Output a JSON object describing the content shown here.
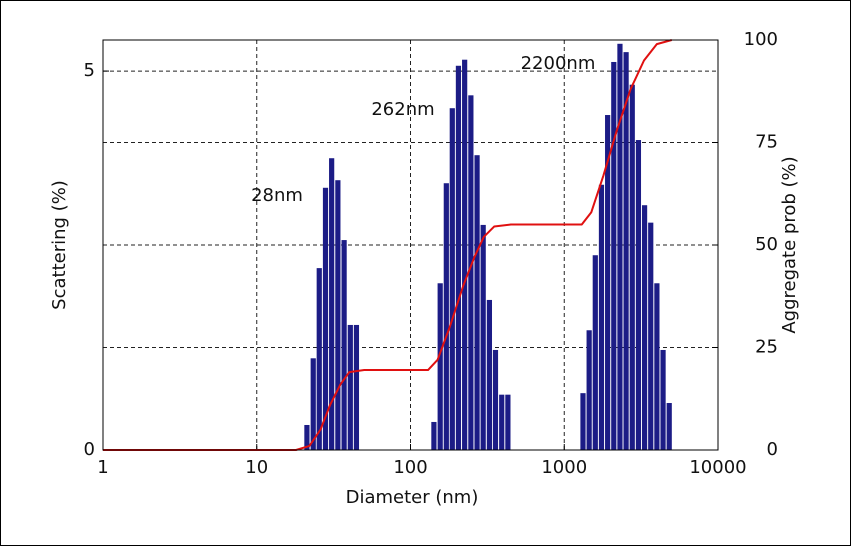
{
  "chart_data": {
    "type": "bar",
    "xlabel": "Diameter (nm)",
    "ylabel": "Scattering (%)",
    "y2label": "Aggregate prob (%)",
    "xscale": "log",
    "xlim": [
      1,
      10000
    ],
    "xticks": [
      1,
      10,
      100,
      1000,
      10000
    ],
    "ylim": [
      0,
      5.41
    ],
    "yticks": [
      0,
      5
    ],
    "y2lim": [
      0,
      100
    ],
    "y2ticks": [
      0,
      25,
      50,
      75,
      100
    ],
    "grid": true,
    "annotations": [
      "28nm",
      "262nm",
      "2200nm"
    ],
    "series": [
      {
        "type": "bar",
        "color": "#1c1c86",
        "x": [
          21.2,
          23.3,
          25.5,
          28.0,
          30.7,
          33.7,
          37.0,
          40.6,
          44.5,
          142,
          156,
          171,
          187,
          205,
          225,
          247,
          271,
          297,
          326,
          357,
          392,
          430,
          1324,
          1452,
          1592,
          1746,
          1915,
          2100,
          2303,
          2525,
          2769,
          3037,
          3330,
          3652,
          4005,
          4392,
          4816
        ],
        "values": [
          0.33,
          1.21,
          2.4,
          3.46,
          3.85,
          3.56,
          2.77,
          1.65,
          1.65,
          0.37,
          2.2,
          3.52,
          4.51,
          5.07,
          5.15,
          4.68,
          3.89,
          2.97,
          1.98,
          1.32,
          0.73,
          0.73,
          0.75,
          1.58,
          2.57,
          3.5,
          4.42,
          5.12,
          5.36,
          5.25,
          4.82,
          4.09,
          3.23,
          3.0,
          2.2,
          1.32,
          0.62
        ]
      },
      {
        "type": "line",
        "color": "#e01010",
        "axis": "y2",
        "x": [
          1,
          18,
          22,
          26,
          30,
          35,
          40,
          50,
          130,
          150,
          180,
          220,
          260,
          300,
          350,
          450,
          1300,
          1500,
          1800,
          2200,
          2700,
          3300,
          4000,
          5000
        ],
        "values": [
          0,
          0,
          1,
          5,
          11,
          16,
          19,
          19.5,
          19.5,
          22,
          30,
          40,
          47,
          52,
          54.5,
          55,
          55,
          58,
          67,
          78,
          88,
          95,
          99,
          100
        ]
      }
    ]
  }
}
